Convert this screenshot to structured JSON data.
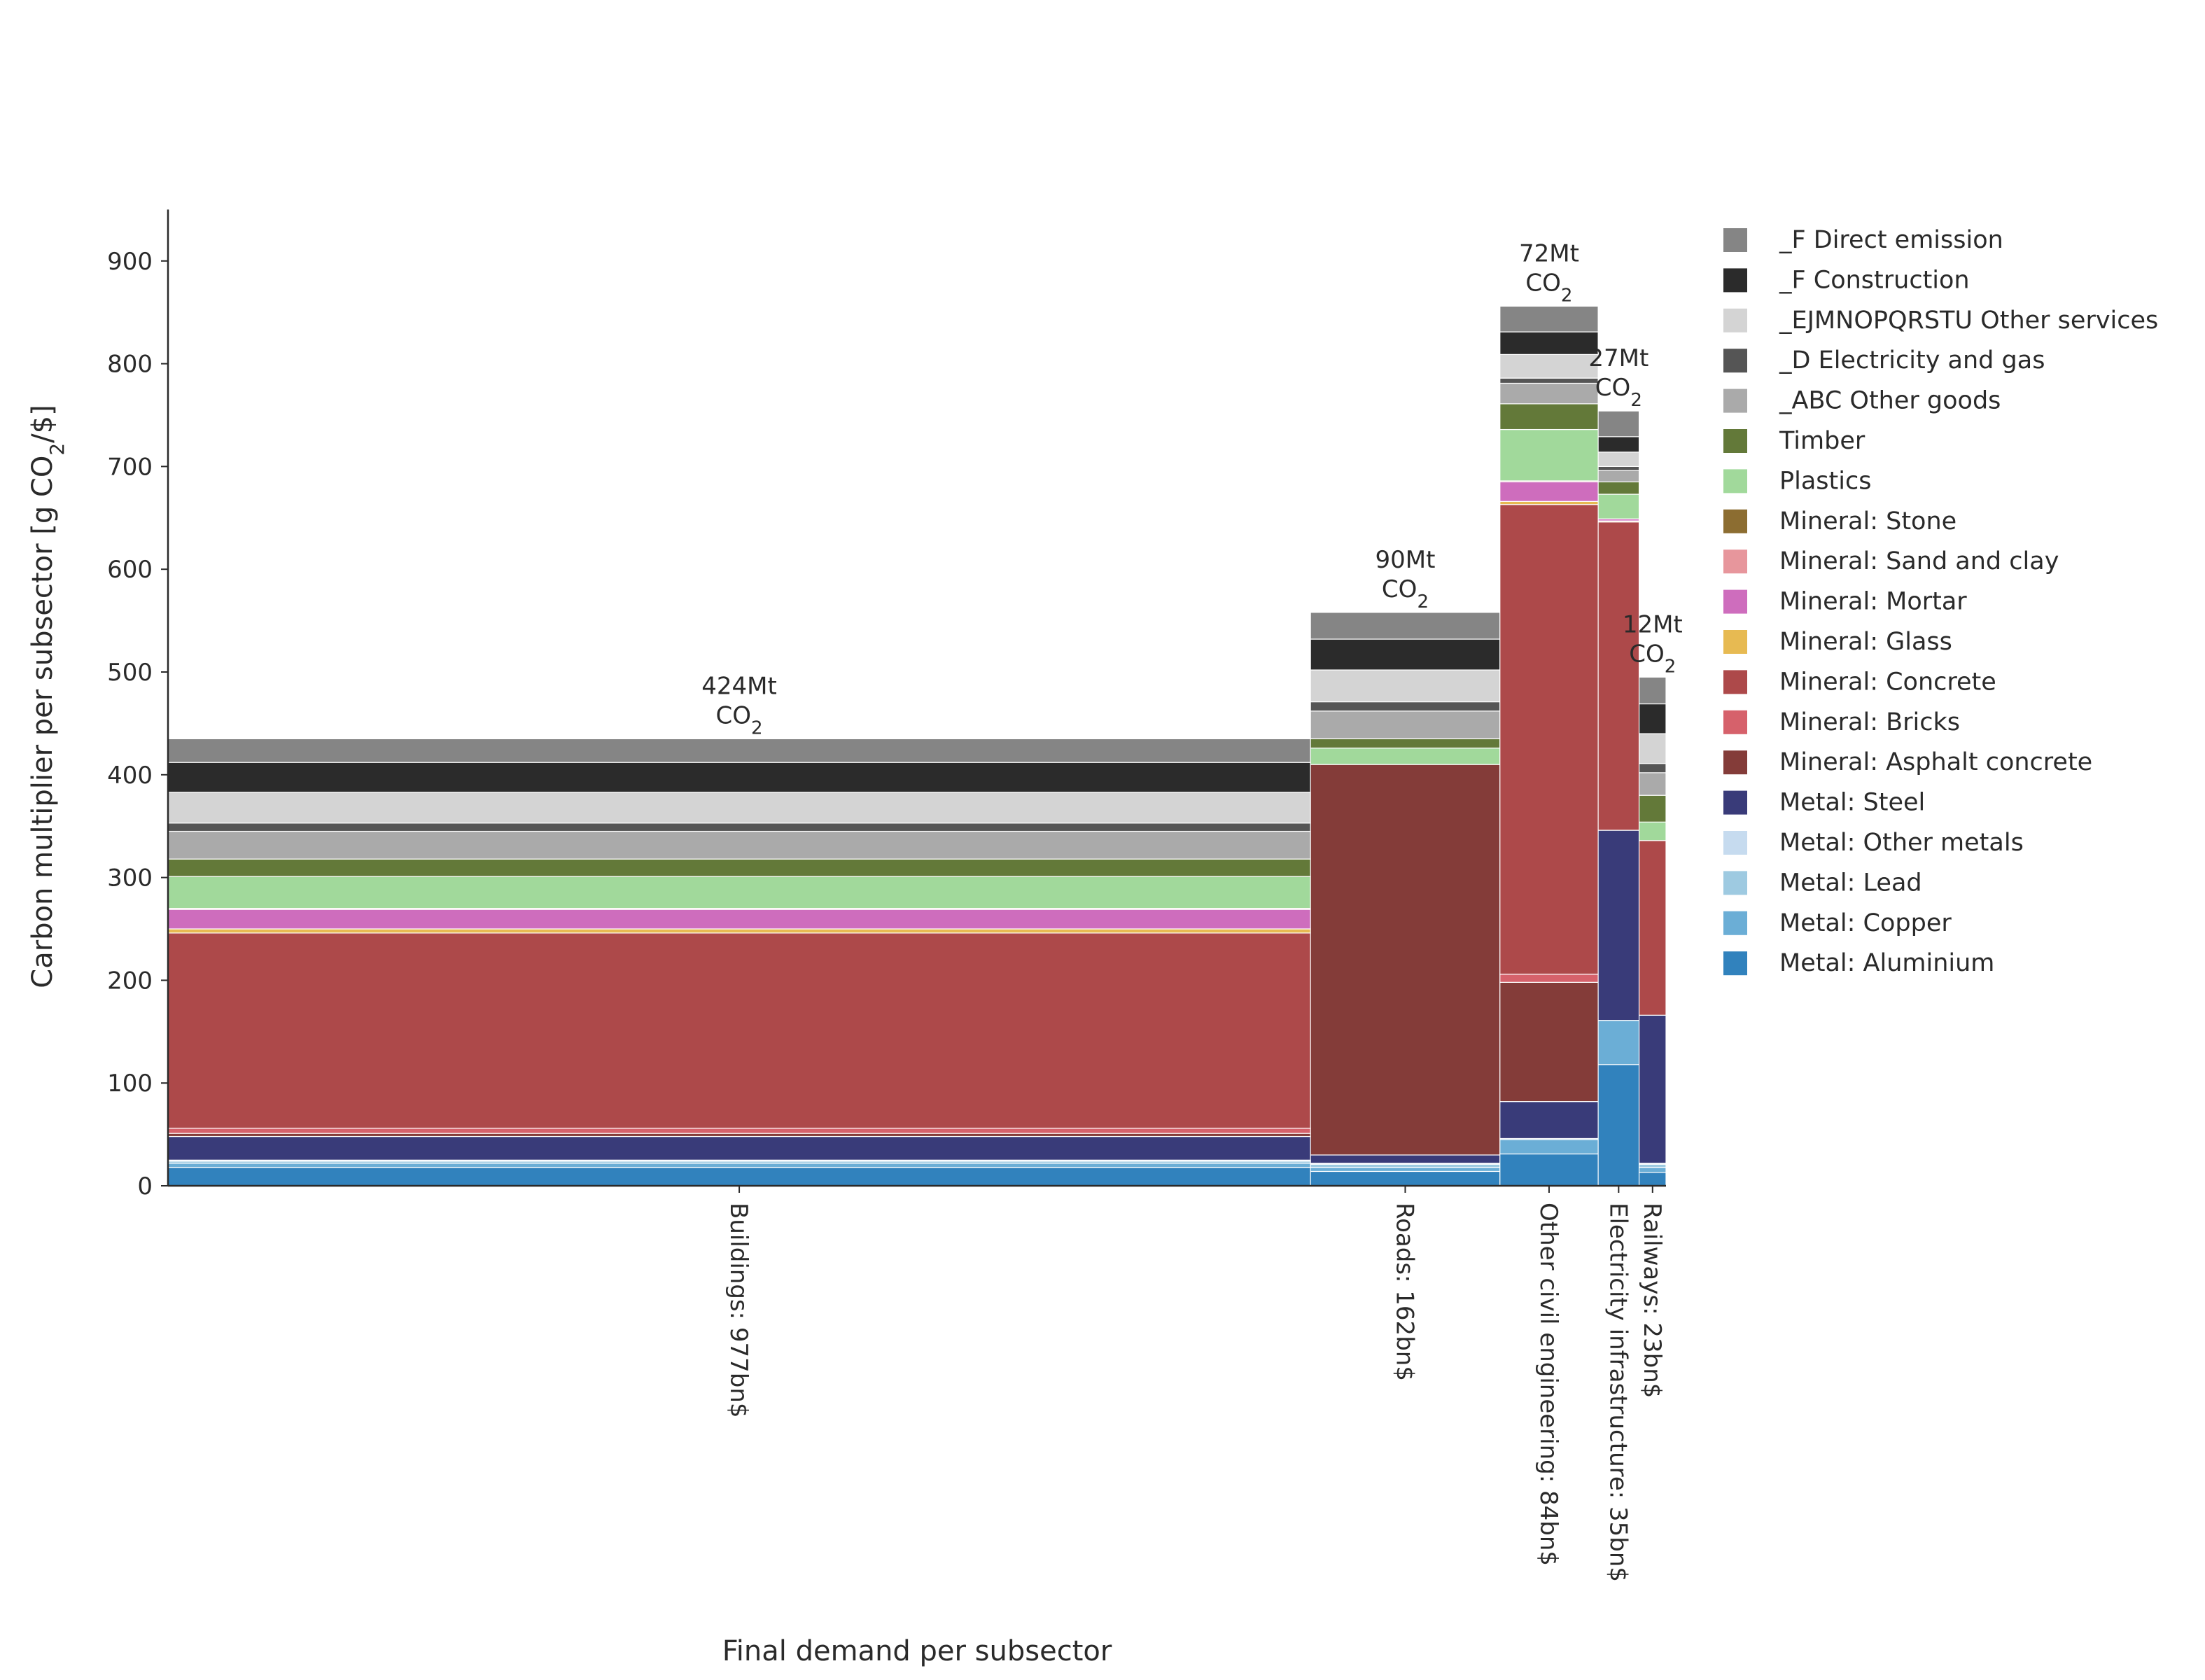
{
  "chart_data": {
    "type": "bar",
    "subtype": "variable-width stacked bar (marimekko)",
    "xlabel": "Final demand per subsector",
    "ylabel": "Carbon multiplier per subsector [g CO₂/$]",
    "ylabel_parts": {
      "main": "Carbon multiplier per subsector [g CO",
      "sub": "2",
      "tail": "/$]"
    },
    "ylim": [
      0,
      950
    ],
    "yticks": [
      0,
      100,
      200,
      300,
      400,
      500,
      600,
      700,
      800,
      900
    ],
    "grid": false,
    "legend_position": "right",
    "categories": [
      {
        "label": "Buildings: 977bn$",
        "demand_bn": 977,
        "total_label": "424Mt",
        "total_unit": "CO",
        "total_unit_sub": "2"
      },
      {
        "label": "Roads: 162bn$",
        "demand_bn": 162,
        "total_label": "90Mt",
        "total_unit": "CO",
        "total_unit_sub": "2"
      },
      {
        "label": "Other civil engineering: 84bn$",
        "demand_bn": 84,
        "total_label": "72Mt",
        "total_unit": "CO",
        "total_unit_sub": "2"
      },
      {
        "label": "Electricity infrastructure: 35bn$",
        "demand_bn": 35,
        "total_label": "27Mt",
        "total_unit": "CO",
        "total_unit_sub": "2"
      },
      {
        "label": "Railways: 23bn$",
        "demand_bn": 23,
        "total_label": "12Mt",
        "total_unit": "CO",
        "total_unit_sub": "2"
      }
    ],
    "series": [
      {
        "name": "Metal: Aluminium",
        "color": "#3182bd",
        "values": [
          18,
          14,
          31,
          118,
          13
        ]
      },
      {
        "name": "Metal: Copper",
        "color": "#6baed6",
        "values": [
          4,
          4,
          14,
          43,
          5
        ]
      },
      {
        "name": "Metal: Lead",
        "color": "#9ecae1",
        "values": [
          2,
          3,
          1,
          0,
          3
        ]
      },
      {
        "name": "Metal: Other metals",
        "color": "#c6dbef",
        "values": [
          1,
          1,
          0,
          0,
          1
        ]
      },
      {
        "name": "Metal: Steel",
        "color": "#393b79",
        "values": [
          23,
          8,
          36,
          185,
          144
        ]
      },
      {
        "name": "Mineral: Asphalt concrete",
        "color": "#843c39",
        "values": [
          3,
          380,
          116,
          0,
          0
        ]
      },
      {
        "name": "Mineral: Bricks",
        "color": "#d6616b",
        "values": [
          5,
          0,
          8,
          0,
          0
        ]
      },
      {
        "name": "Mineral: Concrete",
        "color": "#ad494a",
        "values": [
          190,
          0,
          457,
          300,
          170
        ]
      },
      {
        "name": "Mineral: Glass",
        "color": "#e7ba52",
        "values": [
          4,
          0,
          3,
          1,
          0
        ]
      },
      {
        "name": "Mineral: Mortar",
        "color": "#ce6dbd",
        "values": [
          19,
          0,
          19,
          2,
          0
        ]
      },
      {
        "name": "Mineral: Sand and clay",
        "color": "#e7969c",
        "values": [
          1,
          0,
          1,
          0,
          0
        ]
      },
      {
        "name": "Mineral: Stone",
        "color": "#8c6d31",
        "values": [
          0,
          0,
          0,
          0,
          0
        ]
      },
      {
        "name": "Plastics",
        "color": "#a1d99b",
        "values": [
          31,
          16,
          50,
          24,
          18
        ]
      },
      {
        "name": "Timber",
        "color": "#637939",
        "values": [
          17,
          9,
          25,
          12,
          26
        ]
      },
      {
        "name": "_ABC Other goods",
        "color": "#aaaaaa",
        "values": [
          27,
          27,
          20,
          11,
          22
        ]
      },
      {
        "name": "_D Electricity and gas",
        "color": "#555555",
        "values": [
          8,
          9,
          5,
          4,
          9
        ]
      },
      {
        "name": "_EJMNOPQRSTU Other services",
        "color": "#d4d4d4",
        "values": [
          30,
          31,
          23,
          14,
          29
        ]
      },
      {
        "name": "_F Construction",
        "color": "#2b2b2b",
        "values": [
          29,
          30,
          22,
          15,
          29
        ]
      },
      {
        "name": "_F Direct emission",
        "color": "#858585",
        "values": [
          23,
          26,
          25,
          25,
          26
        ]
      }
    ]
  }
}
